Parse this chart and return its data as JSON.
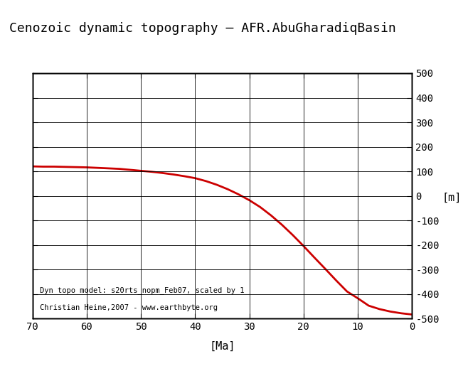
{
  "title": "Cenozoic dynamic topography – AFR.AbuGharadiqBasin",
  "xlabel": "[Ma]",
  "ylabel": "[m]",
  "xlim": [
    70,
    0
  ],
  "ylim": [
    -500,
    500
  ],
  "xticks": [
    70,
    60,
    50,
    40,
    30,
    20,
    10,
    0
  ],
  "yticks": [
    -500,
    -400,
    -300,
    -200,
    -100,
    0,
    100,
    200,
    300,
    400,
    500
  ],
  "line_color": "#cc0000",
  "line_width": 2.0,
  "annotation_line1": "Dyn topo model: s20rts_nopm_Feb07, scaled by 1",
  "annotation_line2": "Christian Heine,2007 - www.earthbyte.org",
  "annotation_fontsize": 7.5,
  "title_fontsize": 13,
  "label_fontsize": 11,
  "tick_fontsize": 10,
  "background_color": "#ffffff",
  "curve_x": [
    70,
    68,
    66,
    64,
    62,
    60,
    58,
    56,
    54,
    52,
    50,
    48,
    46,
    44,
    42,
    40,
    38,
    36,
    34,
    32,
    30,
    28,
    26,
    24,
    22,
    20,
    18,
    16,
    14,
    12,
    10,
    8,
    6,
    4,
    2,
    0
  ],
  "curve_y": [
    120,
    119,
    119,
    118,
    117,
    116,
    114,
    112,
    110,
    106,
    102,
    98,
    93,
    87,
    80,
    72,
    60,
    45,
    27,
    6,
    -18,
    -46,
    -80,
    -118,
    -160,
    -205,
    -252,
    -298,
    -345,
    -390,
    -418,
    -448,
    -462,
    -472,
    -479,
    -484
  ]
}
